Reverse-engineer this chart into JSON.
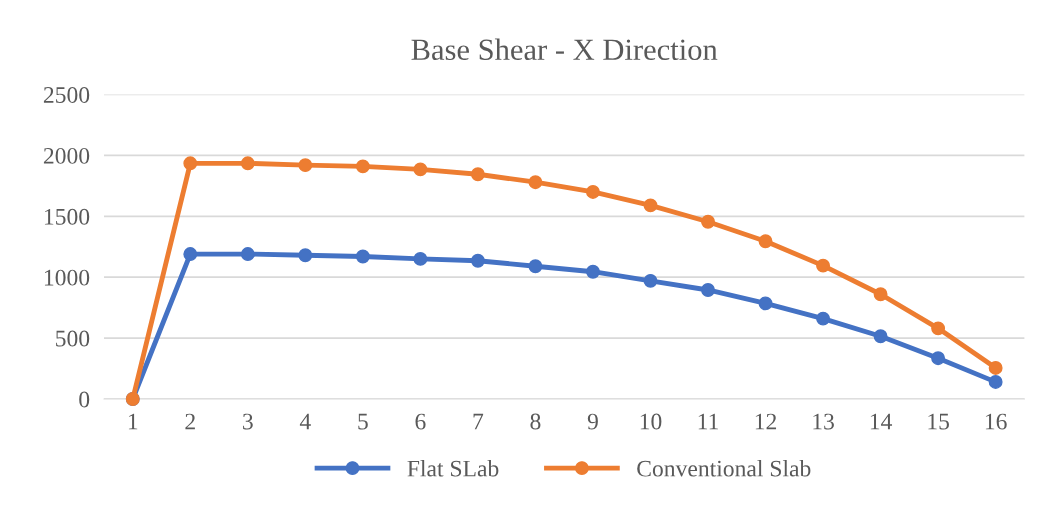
{
  "chart_data": {
    "type": "line",
    "title": "Base Shear - X Direction",
    "categories": [
      "1",
      "2",
      "3",
      "4",
      "5",
      "6",
      "7",
      "8",
      "9",
      "10",
      "11",
      "12",
      "13",
      "14",
      "15",
      "16"
    ],
    "series": [
      {
        "name": "Flat SLab",
        "color": "#4472c4",
        "values": [
          0,
          1190,
          1190,
          1180,
          1170,
          1150,
          1135,
          1090,
          1045,
          970,
          895,
          785,
          660,
          515,
          335,
          140
        ]
      },
      {
        "name": "Conventional Slab",
        "color": "#ed7d31",
        "values": [
          0,
          1935,
          1935,
          1920,
          1910,
          1885,
          1845,
          1780,
          1700,
          1590,
          1455,
          1295,
          1095,
          860,
          580,
          255
        ]
      }
    ],
    "ylim": [
      0,
      2500
    ],
    "yticks": [
      0,
      500,
      1000,
      1500,
      2000,
      2500
    ],
    "grid": "y",
    "legend": "bottom",
    "marker": "circle",
    "line_style": "solid"
  }
}
